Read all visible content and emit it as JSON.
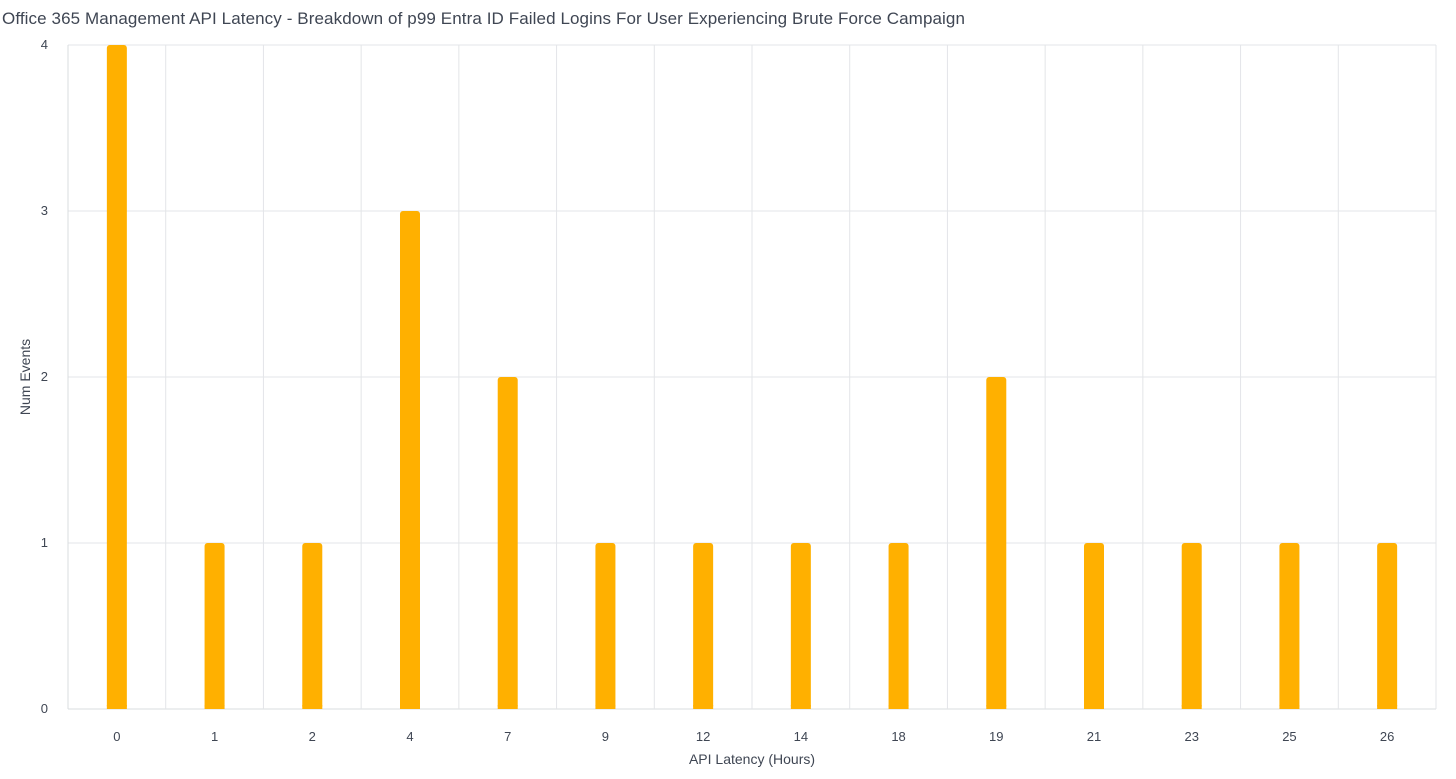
{
  "chart_data": {
    "type": "bar",
    "title": "Office 365 Management API Latency - Breakdown of p99 Entra ID Failed Logins For User Experiencing Brute Force Campaign",
    "xlabel": "API Latency (Hours)",
    "ylabel": "Num Events",
    "categories": [
      "0",
      "1",
      "2",
      "4",
      "7",
      "9",
      "12",
      "14",
      "18",
      "19",
      "21",
      "23",
      "25",
      "26"
    ],
    "values": [
      4,
      1,
      1,
      3,
      2,
      1,
      1,
      1,
      1,
      2,
      1,
      1,
      1,
      1
    ],
    "ylim": [
      0,
      4
    ],
    "yticks": [
      "0",
      "1",
      "2",
      "3",
      "4"
    ],
    "grid": true,
    "bar_color": "#FFB000"
  }
}
